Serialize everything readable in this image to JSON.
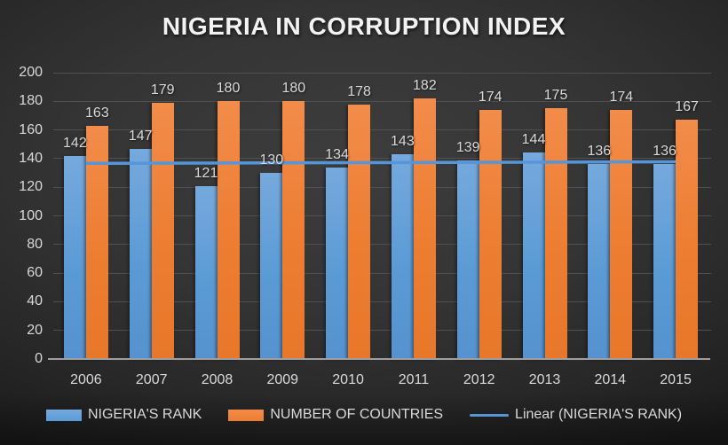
{
  "title": "NIGERIA IN CORRUPTION INDEX",
  "chart_data": {
    "type": "bar",
    "title": "NIGERIA IN CORRUPTION INDEX",
    "categories": [
      "2006",
      "2007",
      "2008",
      "2009",
      "2010",
      "2011",
      "2012",
      "2013",
      "2014",
      "2015"
    ],
    "series": [
      {
        "name": "NIGERIA'S RANK",
        "values": [
          142,
          147,
          121,
          130,
          134,
          143,
          139,
          144,
          136,
          136
        ],
        "color": "#5b9bd5"
      },
      {
        "name": "NUMBER OF COUNTRIES",
        "values": [
          163,
          179,
          180,
          180,
          178,
          182,
          174,
          175,
          174,
          167
        ],
        "color": "#ed7d31"
      }
    ],
    "trendline": {
      "label": "Linear (NIGERIA'S RANK)",
      "based_on_series": "NIGERIA'S RANK",
      "color": "#5596d8"
    },
    "y_axis": {
      "min": 0,
      "max": 200,
      "step": 20
    },
    "x_label": "",
    "y_label": "",
    "grid": true,
    "legend_position": "bottom",
    "data_labels": true
  },
  "colors": {
    "background_center": "#3d3d3d",
    "background_edge": "#1c1c1c",
    "gridline": "#505050",
    "axis_line": "#9e9e9e",
    "tick_text": "#d9d9d9",
    "title_text": "#f2f2f2",
    "rank_bar": "#5b9bd5",
    "countries_bar": "#ed7d31",
    "trendline": "#5596d8"
  }
}
